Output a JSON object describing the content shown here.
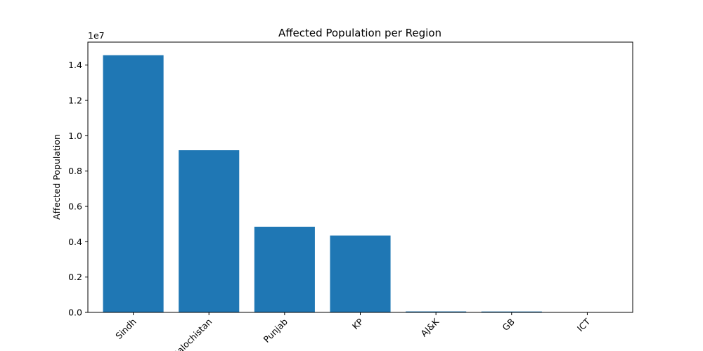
{
  "chart_data": {
    "type": "bar",
    "title": "Affected Population per Region",
    "xlabel": "",
    "ylabel": "Affected Population",
    "y_offset_text": "1e7",
    "categories": [
      "Sindh",
      "Balochistan",
      "Punjab",
      "KP",
      "AJ&K",
      "GB",
      "ICT"
    ],
    "values": [
      14560000,
      9180000,
      4850000,
      4350000,
      55000,
      50000,
      1000
    ],
    "ylim": [
      0,
      15300000
    ],
    "yticks": [
      0,
      2000000,
      4000000,
      6000000,
      8000000,
      10000000,
      12000000,
      14000000
    ],
    "ytick_labels": [
      "0.0",
      "0.2",
      "0.4",
      "0.6",
      "0.8",
      "1.0",
      "1.2",
      "1.4"
    ],
    "bar_color": "#1f77b4",
    "grid": false,
    "xtick_rotation_deg": 45
  }
}
